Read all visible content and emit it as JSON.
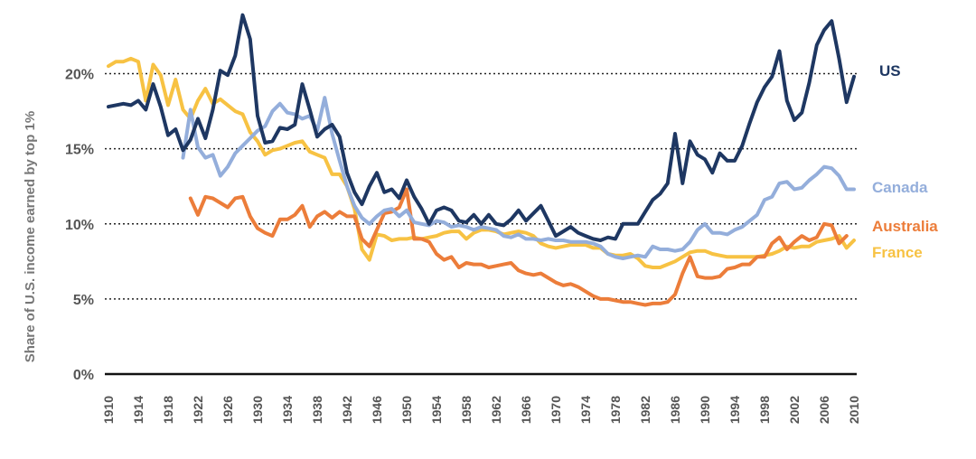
{
  "chart_data": {
    "type": "line",
    "title": "",
    "xlabel": "",
    "ylabel": "Share of U.S. income earned by top 1%",
    "xlim": [
      1910,
      2010
    ],
    "ylim": [
      0,
      24
    ],
    "y_ticks": [
      {
        "value": 0,
        "label": "0%"
      },
      {
        "value": 5,
        "label": "5%"
      },
      {
        "value": 10,
        "label": "10%"
      },
      {
        "value": 15,
        "label": "15%"
      },
      {
        "value": 20,
        "label": "20%"
      }
    ],
    "x_ticks": [
      "1910",
      "1914",
      "1918",
      "1922",
      "1926",
      "1930",
      "1934",
      "1938",
      "1942",
      "1946",
      "1950",
      "1954",
      "1958",
      "1962",
      "1966",
      "1970",
      "1974",
      "1978",
      "1982",
      "1986",
      "1990",
      "1994",
      "1998",
      "2002",
      "2006",
      "2010"
    ],
    "series": [
      {
        "name": "France",
        "label": "France",
        "color": "#f7c243",
        "x": [
          1910,
          1911,
          1912,
          1913,
          1914,
          1915,
          1916,
          1917,
          1918,
          1919,
          1920,
          1921,
          1922,
          1923,
          1924,
          1925,
          1926,
          1927,
          1928,
          1929,
          1930,
          1931,
          1932,
          1933,
          1934,
          1935,
          1936,
          1937,
          1938,
          1939,
          1940,
          1941,
          1942,
          1943,
          1944,
          1945,
          1946,
          1947,
          1948,
          1949,
          1950,
          1951,
          1952,
          1953,
          1954,
          1955,
          1956,
          1957,
          1958,
          1959,
          1960,
          1961,
          1962,
          1963,
          1964,
          1965,
          1966,
          1967,
          1968,
          1969,
          1970,
          1971,
          1972,
          1973,
          1974,
          1975,
          1976,
          1977,
          1978,
          1979,
          1980,
          1981,
          1982,
          1983,
          1984,
          1985,
          1986,
          1987,
          1988,
          1989,
          1990,
          1991,
          1992,
          1993,
          1994,
          1995,
          1996,
          1997,
          1998,
          1999,
          2000,
          2001,
          2002,
          2003,
          2004,
          2005,
          2006,
          2007,
          2008,
          2009,
          2010
        ],
        "values": [
          20.5,
          20.8,
          20.8,
          21.0,
          20.8,
          18.2,
          20.6,
          19.9,
          17.9,
          19.6,
          17.6,
          17.0,
          18.2,
          19.0,
          18.0,
          18.3,
          17.9,
          17.5,
          17.3,
          16.1,
          15.5,
          14.6,
          14.9,
          15.0,
          15.2,
          15.4,
          15.5,
          14.8,
          14.6,
          14.4,
          13.3,
          13.3,
          12.5,
          11.0,
          8.3,
          7.6,
          9.3,
          9.2,
          8.9,
          9.0,
          9.0,
          9.1,
          9.0,
          9.1,
          9.2,
          9.4,
          9.5,
          9.5,
          9.0,
          9.4,
          9.6,
          9.6,
          9.5,
          9.3,
          9.4,
          9.5,
          9.4,
          9.2,
          8.7,
          8.5,
          8.4,
          8.5,
          8.6,
          8.6,
          8.6,
          8.4,
          8.4,
          8.0,
          7.9,
          7.9,
          8.0,
          7.7,
          7.2,
          7.1,
          7.1,
          7.3,
          7.5,
          7.8,
          8.1,
          8.2,
          8.2,
          8.0,
          7.9,
          7.8,
          7.8,
          7.8,
          7.8,
          7.8,
          7.9,
          8.0,
          8.2,
          8.5,
          8.4,
          8.5,
          8.5,
          8.8,
          8.9,
          9.0,
          9.2,
          8.4,
          8.9
        ]
      },
      {
        "name": "Australia",
        "label": "Australia",
        "color": "#ec7d3a",
        "x": [
          1921,
          1922,
          1923,
          1924,
          1925,
          1926,
          1927,
          1928,
          1929,
          1930,
          1931,
          1932,
          1933,
          1934,
          1935,
          1936,
          1937,
          1938,
          1939,
          1940,
          1941,
          1942,
          1943,
          1944,
          1945,
          1946,
          1947,
          1948,
          1949,
          1950,
          1951,
          1952,
          1953,
          1954,
          1955,
          1956,
          1957,
          1958,
          1959,
          1960,
          1961,
          1962,
          1963,
          1964,
          1965,
          1966,
          1967,
          1968,
          1969,
          1970,
          1971,
          1972,
          1973,
          1974,
          1975,
          1976,
          1977,
          1978,
          1979,
          1980,
          1981,
          1982,
          1983,
          1984,
          1985,
          1986,
          1987,
          1988,
          1989,
          1990,
          1991,
          1992,
          1993,
          1994,
          1995,
          1996,
          1997,
          1998,
          1999,
          2000,
          2001,
          2002,
          2003,
          2004,
          2005,
          2006,
          2007,
          2008,
          2009,
          2010
        ],
        "values": [
          11.7,
          10.6,
          11.8,
          11.7,
          11.4,
          11.1,
          11.7,
          11.8,
          10.5,
          9.7,
          9.4,
          9.2,
          10.3,
          10.3,
          10.6,
          11.2,
          9.8,
          10.5,
          10.8,
          10.4,
          10.8,
          10.5,
          10.5,
          9.0,
          8.5,
          9.6,
          10.7,
          10.8,
          11.1,
          12.3,
          9.0,
          9.0,
          8.8,
          8.0,
          7.6,
          7.8,
          7.1,
          7.4,
          7.3,
          7.3,
          7.1,
          7.2,
          7.3,
          7.4,
          6.9,
          6.7,
          6.6,
          6.7,
          6.4,
          6.1,
          5.9,
          6.0,
          5.8,
          5.5,
          5.2,
          5.0,
          5.0,
          4.9,
          4.8,
          4.8,
          4.7,
          4.6,
          4.7,
          4.7,
          4.8,
          5.3,
          6.7,
          7.8,
          6.5,
          6.4,
          6.4,
          6.5,
          7.0,
          7.1,
          7.3,
          7.3,
          7.8,
          7.8,
          8.7,
          9.1,
          8.3,
          8.8,
          9.2,
          8.9,
          9.1,
          10.0,
          9.9,
          8.7,
          9.2,
          null
        ]
      },
      {
        "name": "Canada",
        "label": "Canada",
        "color": "#94aedb",
        "x": [
          1920,
          1921,
          1922,
          1923,
          1924,
          1925,
          1926,
          1927,
          1928,
          1929,
          1930,
          1931,
          1932,
          1933,
          1934,
          1935,
          1936,
          1937,
          1938,
          1939,
          1940,
          1941,
          1942,
          1943,
          1944,
          1945,
          1946,
          1947,
          1948,
          1949,
          1950,
          1951,
          1952,
          1953,
          1954,
          1955,
          1956,
          1957,
          1958,
          1959,
          1960,
          1961,
          1962,
          1963,
          1964,
          1965,
          1966,
          1967,
          1968,
          1969,
          1970,
          1971,
          1972,
          1973,
          1974,
          1975,
          1976,
          1977,
          1978,
          1979,
          1980,
          1981,
          1982,
          1983,
          1984,
          1985,
          1986,
          1987,
          1988,
          1989,
          1990,
          1991,
          1992,
          1993,
          1994,
          1995,
          1996,
          1997,
          1998,
          1999,
          2000,
          2001,
          2002,
          2003,
          2004,
          2005,
          2006,
          2007,
          2008,
          2009,
          2010
        ],
        "values": [
          14.4,
          17.6,
          15.1,
          14.4,
          14.6,
          13.2,
          13.8,
          14.7,
          15.2,
          15.7,
          16.2,
          16.5,
          17.5,
          18.0,
          17.4,
          17.3,
          17.0,
          17.2,
          16.2,
          18.4,
          16.0,
          14.2,
          12.5,
          11.2,
          10.4,
          10.0,
          10.5,
          10.9,
          11.0,
          10.5,
          10.9,
          10.1,
          10.0,
          9.9,
          10.2,
          10.1,
          9.8,
          9.9,
          9.8,
          9.6,
          9.8,
          9.7,
          9.6,
          9.2,
          9.1,
          9.3,
          9.0,
          9.0,
          8.9,
          9.0,
          8.9,
          8.9,
          8.8,
          8.8,
          8.8,
          8.7,
          8.5,
          8.0,
          7.8,
          7.7,
          7.8,
          7.9,
          7.8,
          8.5,
          8.3,
          8.3,
          8.2,
          8.3,
          8.8,
          9.6,
          10.0,
          9.4,
          9.4,
          9.3,
          9.6,
          9.8,
          10.2,
          10.6,
          11.6,
          11.8,
          12.7,
          12.8,
          12.3,
          12.4,
          12.9,
          13.3,
          13.8,
          13.7,
          13.2,
          12.3,
          12.3
        ]
      },
      {
        "name": "US",
        "label": "US",
        "color": "#1e3762",
        "x": [
          1910,
          1911,
          1912,
          1913,
          1914,
          1915,
          1916,
          1917,
          1918,
          1919,
          1920,
          1921,
          1922,
          1923,
          1924,
          1925,
          1926,
          1927,
          1928,
          1929,
          1930,
          1931,
          1932,
          1933,
          1934,
          1935,
          1936,
          1937,
          1938,
          1939,
          1940,
          1941,
          1942,
          1943,
          1944,
          1945,
          1946,
          1947,
          1948,
          1949,
          1950,
          1951,
          1952,
          1953,
          1954,
          1955,
          1956,
          1957,
          1958,
          1959,
          1960,
          1961,
          1962,
          1963,
          1964,
          1965,
          1966,
          1967,
          1968,
          1969,
          1970,
          1971,
          1972,
          1973,
          1974,
          1975,
          1976,
          1977,
          1978,
          1979,
          1980,
          1981,
          1982,
          1983,
          1984,
          1985,
          1986,
          1987,
          1988,
          1989,
          1990,
          1991,
          1992,
          1993,
          1994,
          1995,
          1996,
          1997,
          1998,
          1999,
          2000,
          2001,
          2002,
          2003,
          2004,
          2005,
          2006,
          2007,
          2008,
          2009,
          2010
        ],
        "values": [
          17.8,
          17.9,
          18.0,
          17.9,
          18.2,
          17.6,
          19.3,
          17.8,
          15.9,
          16.3,
          14.9,
          15.6,
          17.0,
          15.7,
          17.6,
          20.2,
          19.9,
          21.2,
          23.9,
          22.3,
          17.2,
          15.4,
          15.5,
          16.4,
          16.3,
          16.6,
          19.3,
          17.6,
          15.8,
          16.3,
          16.6,
          15.8,
          13.4,
          12.1,
          11.3,
          12.5,
          13.4,
          12.1,
          12.3,
          11.7,
          12.9,
          11.8,
          11.0,
          10.0,
          10.9,
          11.1,
          10.9,
          10.2,
          10.1,
          10.6,
          10.0,
          10.6,
          10.0,
          9.9,
          10.3,
          10.9,
          10.2,
          10.7,
          11.2,
          10.2,
          9.2,
          9.5,
          9.8,
          9.4,
          9.2,
          9.0,
          8.9,
          9.1,
          9.0,
          10.0,
          10.0,
          10.0,
          10.8,
          11.6,
          12.0,
          12.7,
          16.0,
          12.7,
          15.5,
          14.6,
          14.3,
          13.4,
          14.7,
          14.2,
          14.2,
          15.2,
          16.7,
          18.1,
          19.1,
          19.8,
          21.5,
          18.2,
          16.9,
          17.4,
          19.4,
          21.9,
          22.9,
          23.5,
          21.0,
          18.1,
          19.8
        ]
      }
    ]
  }
}
